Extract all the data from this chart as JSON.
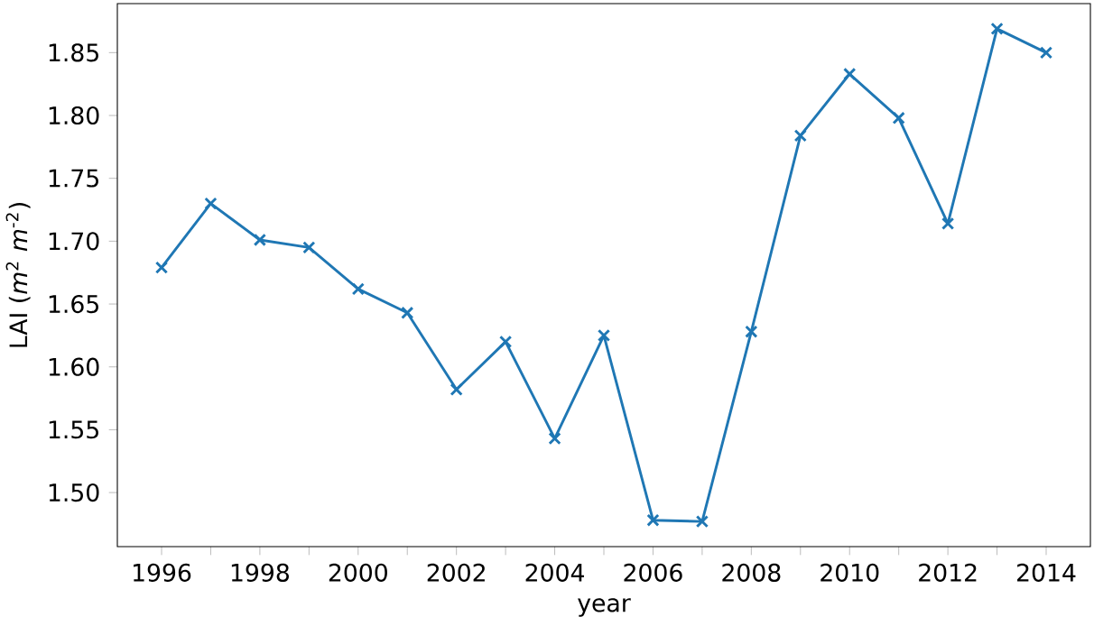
{
  "chart_data": {
    "type": "line",
    "xlabel": "year",
    "ylabel": "LAI (*m*$^{2}$ *m*$^{-2}$)",
    "x": [
      1996,
      1997,
      1998,
      1999,
      2000,
      2001,
      2002,
      2003,
      2004,
      2005,
      2006,
      2007,
      2008,
      2009,
      2010,
      2011,
      2012,
      2013,
      2014
    ],
    "values": [
      1.679,
      1.73,
      1.701,
      1.695,
      1.662,
      1.643,
      1.582,
      1.62,
      1.543,
      1.625,
      1.478,
      1.477,
      1.628,
      1.784,
      1.833,
      1.798,
      1.714,
      1.869,
      1.85
    ],
    "color": "#1f77b4",
    "marker": "cross",
    "line_style": "solid",
    "xlim": [
      1995.1,
      2014.9
    ],
    "ylim": [
      1.457,
      1.889
    ],
    "xticks": [
      1996,
      {
        "value": 1997,
        "label": null
      },
      1998,
      {
        "value": 1999,
        "label": null
      },
      2000,
      {
        "value": 2001,
        "label": null
      },
      2002,
      {
        "value": 2003,
        "label": null
      },
      2004,
      {
        "value": 2005,
        "label": null
      },
      2006,
      {
        "value": 2007,
        "label": null
      },
      2008,
      {
        "value": 2009,
        "label": null
      },
      2010,
      {
        "value": 2011,
        "label": null
      },
      2012,
      {
        "value": 2013,
        "label": null
      },
      2014
    ],
    "yticks": [
      {
        "value": 1.5,
        "label": "1.50"
      },
      {
        "value": 1.55,
        "label": "1.55"
      },
      {
        "value": 1.6,
        "label": "1.60"
      },
      {
        "value": 1.65,
        "label": "1.65"
      },
      {
        "value": 1.7,
        "label": "1.70"
      },
      {
        "value": 1.75,
        "label": "1.75"
      },
      {
        "value": 1.8,
        "label": "1.80"
      },
      {
        "value": 1.85,
        "label": "1.85"
      }
    ]
  }
}
